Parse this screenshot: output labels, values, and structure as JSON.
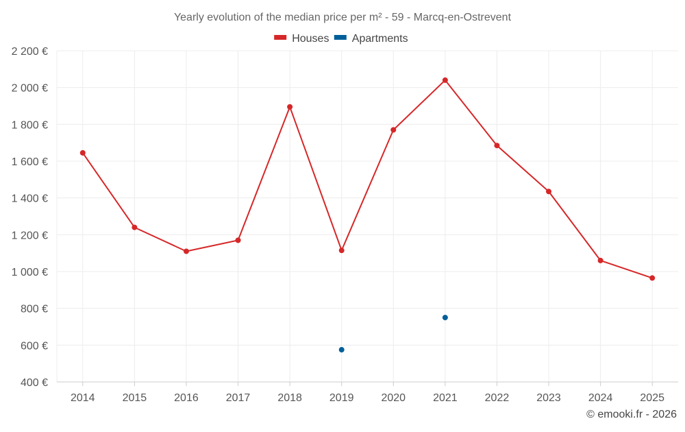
{
  "chart_data": {
    "type": "line",
    "title": "Yearly evolution of the median price per m² - 59 - Marcq-en-Ostrevent",
    "categories": [
      "2014",
      "2015",
      "2016",
      "2017",
      "2018",
      "2019",
      "2020",
      "2021",
      "2022",
      "2023",
      "2024",
      "2025"
    ],
    "ylim": [
      400,
      2200
    ],
    "yticks": [
      400,
      600,
      800,
      1000,
      1200,
      1400,
      1600,
      1800,
      2000,
      2200
    ],
    "ytick_labels": [
      "400 €",
      "600 €",
      "800 €",
      "1 000 €",
      "1 200 €",
      "1 400 €",
      "1 600 €",
      "1 800 €",
      "2 000 €",
      "2 200 €"
    ],
    "grid": true,
    "legend_position": "top-center",
    "series": [
      {
        "name": "Houses",
        "color": "#d62728",
        "values": [
          1645,
          1240,
          1110,
          1170,
          1895,
          1115,
          1770,
          2040,
          1685,
          1435,
          1060,
          965
        ]
      },
      {
        "name": "Apartments",
        "color": "#005f99",
        "values": [
          null,
          null,
          null,
          null,
          null,
          575,
          null,
          750,
          null,
          null,
          null,
          null
        ]
      }
    ]
  },
  "credit": "© emooki.fr - 2026"
}
